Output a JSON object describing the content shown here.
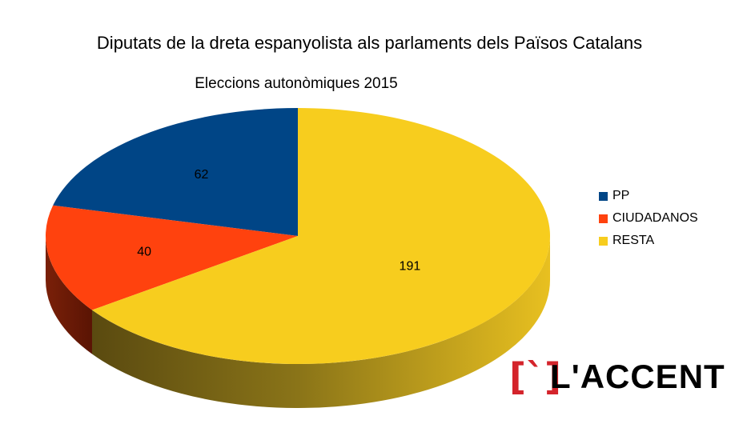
{
  "chart_data": {
    "type": "pie",
    "title": "Diputats de la dreta espanyolista als parlaments dels Països Catalans",
    "subtitle": "Eleccions autonòmiques 2015",
    "categories": [
      "PP",
      "CIUDADANOS",
      "RESTA"
    ],
    "values": [
      62,
      40,
      191
    ],
    "colors": [
      "#004586",
      "#ff420e",
      "#f7cd1e"
    ],
    "legend_position": "right",
    "style": "3d"
  },
  "logo": {
    "text": "L'ACCENT"
  }
}
